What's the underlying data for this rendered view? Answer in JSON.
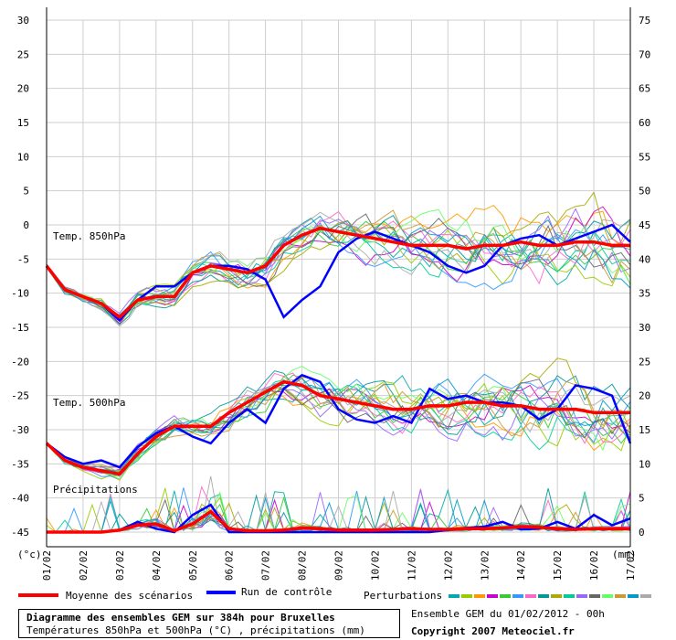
{
  "chart_data": {
    "type": "line",
    "title": "Diagramme des ensembles GEM sur 384h pour Bruxelles",
    "subtitle": "Températures 850hPa et 500hPa (°C) , précipitations (mm)",
    "run_info": "Ensemble GEM du 01/02/2012 - 00h",
    "copyright": "Copyright 2007 Meteociel.fr",
    "left_axis_unit": "(°c)",
    "right_axis_unit": "(mm)",
    "left_axis": {
      "min": -45,
      "max": 30,
      "ticks": [
        30,
        25,
        20,
        15,
        10,
        5,
        0,
        -5,
        -10,
        -15,
        -20,
        -25,
        -30,
        -35,
        -40,
        -45
      ]
    },
    "right_axis": {
      "min": 0,
      "max": 75,
      "ticks": [
        75,
        70,
        65,
        60,
        55,
        50,
        45,
        40,
        35,
        30,
        25,
        20,
        15,
        10,
        5,
        0
      ]
    },
    "x_ticks": [
      "01/02",
      "02/02",
      "03/02",
      "04/02",
      "05/02",
      "06/02",
      "07/02",
      "08/02",
      "09/02",
      "10/02",
      "11/02",
      "12/02",
      "13/02",
      "14/02",
      "15/02",
      "16/02",
      "17/02"
    ],
    "grid": true,
    "panel_labels": {
      "t850": "Temp. 850hPa",
      "t500": "Temp. 500hPa",
      "precip": "Précipitations"
    },
    "legend": {
      "mean": "Moyenne des scénarios",
      "control": "Run de contrôle",
      "perturbations": "Perturbations",
      "mean_color": "#ff0000",
      "control_color": "#0000ff",
      "perturbation_colors": [
        "#00aaaa",
        "#99cc00",
        "#ff9900",
        "#cc00cc",
        "#33cc33",
        "#3399ff",
        "#ff66cc",
        "#009999",
        "#aaaa00",
        "#00cc99",
        "#9966ff",
        "#666666",
        "#66ff66",
        "#cc9933",
        "#0099cc",
        "#aaaaaa"
      ]
    },
    "series": [
      {
        "name": "Moyenne des scénarios",
        "panel": "t850",
        "x": [
          0,
          12,
          24,
          36,
          48,
          60,
          72,
          84,
          96,
          108,
          120,
          132,
          144,
          156,
          168,
          180,
          192,
          204,
          216,
          228,
          240,
          252,
          264,
          276,
          288,
          300,
          312,
          324,
          336,
          348,
          360,
          372,
          384
        ],
        "values": [
          -6,
          -9.5,
          -10.5,
          -11.5,
          -13.5,
          -11,
          -10.5,
          -10.5,
          -7,
          -6,
          -6.5,
          -7,
          -6,
          -3,
          -1.5,
          -0.5,
          -1,
          -1.5,
          -2,
          -2.5,
          -3,
          -3,
          -3,
          -3.5,
          -3,
          -3,
          -2.5,
          -3,
          -3,
          -2.5,
          -2.5,
          -3,
          -3
        ]
      },
      {
        "name": "Run de contrôle",
        "panel": "t850",
        "x": [
          0,
          12,
          24,
          36,
          48,
          60,
          72,
          84,
          96,
          108,
          120,
          132,
          144,
          156,
          168,
          180,
          192,
          204,
          216,
          228,
          240,
          252,
          264,
          276,
          288,
          300,
          312,
          324,
          336,
          348,
          360,
          372,
          384
        ],
        "values": [
          -6,
          -9.5,
          -10.5,
          -11.5,
          -14,
          -11,
          -9,
          -9,
          -7,
          -6,
          -6,
          -6.5,
          -8,
          -13.5,
          -11,
          -9,
          -4,
          -2,
          -1,
          -2,
          -3,
          -4,
          -6,
          -7,
          -6,
          -3,
          -2,
          -1.5,
          -3,
          -2,
          -1,
          0,
          -2.5
        ]
      },
      {
        "name": "Moyenne des scénarios",
        "panel": "t500",
        "x": [
          0,
          12,
          24,
          36,
          48,
          60,
          72,
          84,
          96,
          108,
          120,
          132,
          144,
          156,
          168,
          180,
          192,
          204,
          216,
          228,
          240,
          252,
          264,
          276,
          288,
          300,
          312,
          324,
          336,
          348,
          360,
          372,
          384
        ],
        "values": [
          -32,
          -34.5,
          -35.5,
          -36,
          -36.5,
          -33.5,
          -31,
          -29.5,
          -29.5,
          -29.5,
          -27.5,
          -26,
          -24.5,
          -23,
          -23.5,
          -25,
          -25.5,
          -26,
          -26.5,
          -27,
          -27,
          -26.5,
          -26.5,
          -26,
          -26,
          -26.5,
          -26.5,
          -27,
          -27,
          -27,
          -27.5,
          -27.5,
          -27.5
        ]
      },
      {
        "name": "Run de contrôle",
        "panel": "t500",
        "x": [
          0,
          12,
          24,
          36,
          48,
          60,
          72,
          84,
          96,
          108,
          120,
          132,
          144,
          156,
          168,
          180,
          192,
          204,
          216,
          228,
          240,
          252,
          264,
          276,
          288,
          300,
          312,
          324,
          336,
          348,
          360,
          372,
          384
        ],
        "values": [
          -32,
          -34,
          -35,
          -34.5,
          -35.5,
          -32.5,
          -30.5,
          -29.5,
          -31,
          -32,
          -29,
          -27,
          -29,
          -24,
          -22,
          -23,
          -27,
          -28.5,
          -29,
          -28,
          -29,
          -24,
          -25.5,
          -25,
          -26,
          -26,
          -26.5,
          -28.5,
          -27,
          -23.5,
          -24,
          -25,
          -32
        ]
      },
      {
        "name": "Moyenne des scénarios",
        "panel": "precip",
        "unit": "mm",
        "x": [
          0,
          12,
          24,
          36,
          48,
          60,
          72,
          84,
          96,
          108,
          120,
          132,
          144,
          156,
          168,
          180,
          192,
          204,
          216,
          228,
          240,
          252,
          264,
          276,
          288,
          300,
          312,
          324,
          336,
          348,
          360,
          372,
          384
        ],
        "values": [
          0,
          0,
          0,
          0,
          0.3,
          1,
          1.2,
          0.2,
          1.2,
          3,
          0.5,
          0.2,
          0.2,
          0.3,
          0.6,
          0.5,
          0.3,
          0.3,
          0.3,
          0.4,
          0.5,
          0.4,
          0.4,
          0.5,
          0.5,
          0.6,
          0.8,
          0.7,
          0.5,
          0.4,
          0.5,
          0.5,
          0.5
        ]
      },
      {
        "name": "Run de contrôle",
        "panel": "precip",
        "unit": "mm",
        "x": [
          0,
          12,
          24,
          36,
          48,
          60,
          72,
          84,
          96,
          108,
          120,
          132,
          144,
          156,
          168,
          180,
          192,
          204,
          216,
          228,
          240,
          252,
          264,
          276,
          288,
          300,
          312,
          324,
          336,
          348,
          360,
          372,
          384
        ],
        "values": [
          0,
          0,
          0,
          0,
          0.3,
          1.5,
          0.5,
          0,
          2.5,
          4,
          0,
          0,
          0,
          0,
          0,
          0,
          0,
          0,
          0,
          0,
          0,
          0,
          0.3,
          0.6,
          0.8,
          1.5,
          0.4,
          0.5,
          1.5,
          0.5,
          2.5,
          1,
          2
        ]
      }
    ]
  }
}
